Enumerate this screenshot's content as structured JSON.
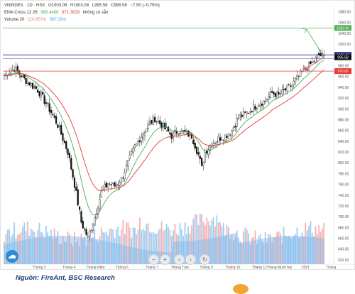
{
  "header": {
    "symbol": "VNINDEX · 1D · HSX",
    "o": "O1003.08",
    "h": "H1003.08",
    "l": "L995.58",
    "c": "C995.58",
    "chg": "−7.50 (−0.75%)",
    "ema_label": "EMA Cross 12 26",
    "ema_fast": "989.4468",
    "ema_slow": "971.3629",
    "ema_extra": "không có sẵn",
    "vol_label": "Volume 20",
    "vol_a": "110.857m",
    "vol_b": "397.28m"
  },
  "footer": {
    "source": "Nguồn: FireAnt, BSC Research"
  },
  "controls": [
    "−",
    "+",
    "‹",
    "›",
    "↻"
  ],
  "colors": {
    "ema_fast": "#4caf50",
    "ema_slow": "#e53935",
    "volume": "#90c4ef",
    "volume_up": "#f2a6a6",
    "candle": "#111111",
    "support": "#e53935",
    "resistance": "#4caf50",
    "current": "#1a237e"
  },
  "chart_data": {
    "type": "candlestick",
    "y_ticks": [
      "1080.00",
      "1060.00",
      "1040.00",
      "1020.00",
      "1000.00",
      "980.00",
      "960.00",
      "940.00",
      "920.00",
      "900.00",
      "880.00",
      "860.00",
      "840.00",
      "820.00",
      "800.00",
      "780.00",
      "760.00",
      "740.00",
      "720.00",
      "700.00",
      "680.00",
      "660.00",
      "640.00",
      "620.00"
    ],
    "ylim": [
      612,
      1086
    ],
    "x_ticks": [
      "Tháng 3",
      "Tháng 4",
      "Tháng Năm",
      "Tháng 6",
      "Tháng 7",
      "Tháng Tám",
      "Tháng 9",
      "Tháng 10",
      "Tháng 11",
      "Tháng Mười hai",
      "2021",
      "Tháng"
    ],
    "price_labels": [
      {
        "value": 1050.0,
        "text": "1050.00",
        "color": "#4caf50"
      },
      {
        "value": 1000.0,
        "text": "1000.00",
        "color": "#1a237e"
      },
      {
        "value": 995.58,
        "text": "995.58",
        "color": "#111111"
      },
      {
        "value": 970.0,
        "text": "970.00",
        "color": "#e53935"
      }
    ],
    "levels": [
      {
        "name": "resistance",
        "value": 1050
      },
      {
        "name": "current",
        "value": 1000
      },
      {
        "name": "support",
        "value": 970
      }
    ],
    "close_anchors": [
      [
        0,
        962
      ],
      [
        6,
        975
      ],
      [
        12,
        955
      ],
      [
        20,
        935
      ],
      [
        26,
        905
      ],
      [
        32,
        870
      ],
      [
        38,
        820
      ],
      [
        42,
        760
      ],
      [
        46,
        690
      ],
      [
        50,
        660
      ],
      [
        54,
        700
      ],
      [
        58,
        745
      ],
      [
        62,
        762
      ],
      [
        66,
        757
      ],
      [
        70,
        770
      ],
      [
        74,
        800
      ],
      [
        78,
        830
      ],
      [
        82,
        850
      ],
      [
        86,
        870
      ],
      [
        90,
        882
      ],
      [
        94,
        870
      ],
      [
        100,
        850
      ],
      [
        104,
        860
      ],
      [
        108,
        855
      ],
      [
        112,
        850
      ],
      [
        116,
        815
      ],
      [
        118,
        790
      ],
      [
        120,
        820
      ],
      [
        124,
        835
      ],
      [
        128,
        845
      ],
      [
        132,
        850
      ],
      [
        136,
        860
      ],
      [
        140,
        885
      ],
      [
        144,
        890
      ],
      [
        148,
        900
      ],
      [
        152,
        910
      ],
      [
        156,
        915
      ],
      [
        160,
        930
      ],
      [
        164,
        925
      ],
      [
        168,
        935
      ],
      [
        172,
        945
      ],
      [
        176,
        960
      ],
      [
        180,
        975
      ],
      [
        184,
        985
      ],
      [
        188,
        1000
      ],
      [
        191,
        996
      ]
    ],
    "n_days": 192
  }
}
